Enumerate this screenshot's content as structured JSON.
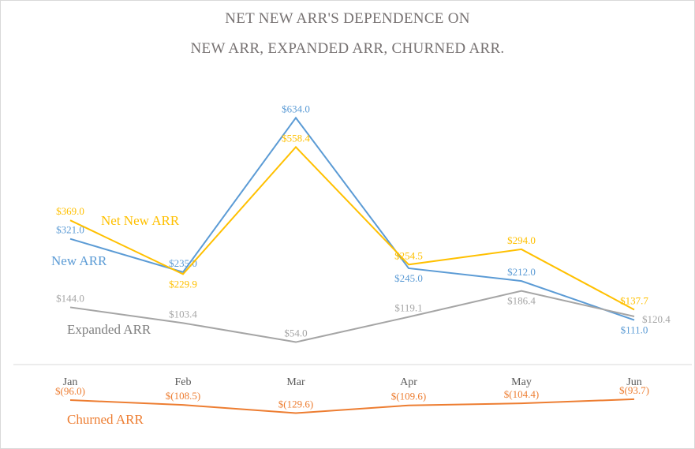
{
  "chart_data": {
    "type": "line",
    "title_lines": [
      "NET NEW ARR'S DEPENDENCE ON",
      "NEW ARR, EXPANDED ARR, CHURNED ARR."
    ],
    "categories": [
      "Jan",
      "Feb",
      "Mar",
      "Apr",
      "May",
      "Jun"
    ],
    "xlabel": "",
    "ylabel": "",
    "grid": false,
    "legend": "inline series labels",
    "series": [
      {
        "name": "New ARR",
        "color": "#5B9BD5",
        "values": [
          321.0,
          235.0,
          634.0,
          245.0,
          212.0,
          111.0
        ],
        "labels": [
          "$321.0",
          "$235.0",
          "$634.0",
          "$245.0",
          "$212.0",
          "$111.0"
        ]
      },
      {
        "name": "Expanded ARR",
        "color": "#A5A5A5",
        "values": [
          144.0,
          103.4,
          54.0,
          119.1,
          186.4,
          120.4
        ],
        "labels": [
          "$144.0",
          "$103.4",
          "$54.0",
          "$119.1",
          "$186.4",
          "$120.4"
        ]
      },
      {
        "name": "Churned ARR",
        "color": "#ED7D31",
        "values": [
          -96.0,
          -108.5,
          -129.6,
          -109.6,
          -104.4,
          -93.7
        ],
        "labels": [
          "$(96.0)",
          "$(108.5)",
          "$(129.6)",
          "$(109.6)",
          "$(104.4)",
          "$(93.7)"
        ]
      },
      {
        "name": "Net New ARR",
        "color": "#FFC000",
        "values": [
          369.0,
          229.9,
          558.4,
          254.5,
          294.0,
          137.7
        ],
        "labels": [
          "$369.0",
          "$229.9",
          "$558.4",
          "$254.5",
          "$294.0",
          "$137.7"
        ]
      }
    ]
  }
}
